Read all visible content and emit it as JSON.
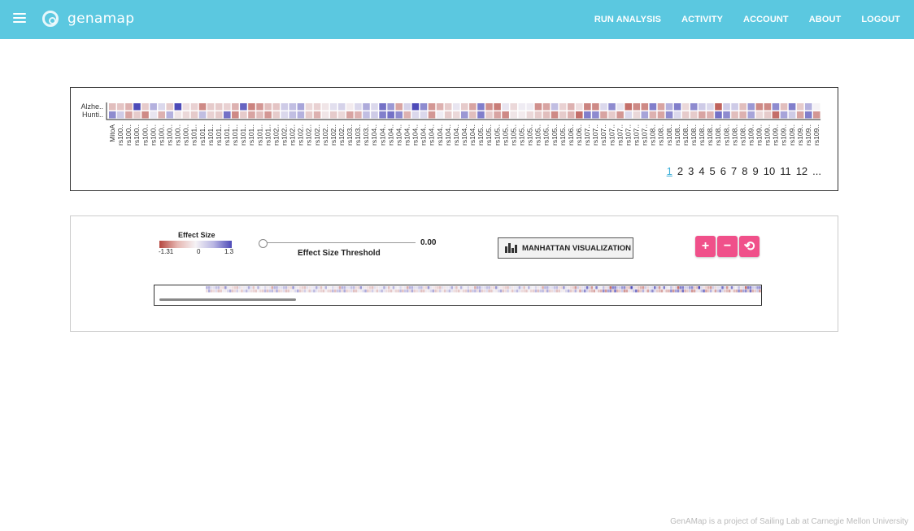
{
  "app": {
    "name": "genamap"
  },
  "nav": {
    "items": [
      "RUN ANALYSIS",
      "ACTIVITY",
      "ACCOUNT",
      "ABOUT",
      "LOGOUT"
    ]
  },
  "heatmap": {
    "rows": [
      "Alzhe..",
      "Hunti.."
    ],
    "columns": [
      "MitoA",
      "rs100..",
      "rs100..",
      "rs100..",
      "rs100..",
      "rs100..",
      "rs100..",
      "rs100..",
      "rs100..",
      "rs100..",
      "rs101..",
      "rs101..",
      "rs101..",
      "rs101..",
      "rs101..",
      "rs101..",
      "rs101..",
      "rs101..",
      "rs101..",
      "rs101..",
      "rs102..",
      "rs102..",
      "rs102..",
      "rs102..",
      "rs102..",
      "rs102..",
      "rs102..",
      "rs102..",
      "rs102..",
      "rs103..",
      "rs103..",
      "rs103..",
      "rs104..",
      "rs104..",
      "rs104..",
      "rs104..",
      "rs104..",
      "rs104..",
      "rs104..",
      "rs104..",
      "rs104..",
      "rs104..",
      "rs104..",
      "rs104..",
      "rs104..",
      "rs105..",
      "rs105..",
      "rs105..",
      "rs105..",
      "rs105..",
      "rs105..",
      "rs105..",
      "rs105..",
      "rs105..",
      "rs105..",
      "rs105..",
      "rs106..",
      "rs106..",
      "rs107..",
      "rs107..",
      "rs107..",
      "rs107..",
      "rs107..",
      "rs107..",
      "rs107..",
      "rs107..",
      "rs108..",
      "rs108..",
      "rs108..",
      "rs108..",
      "rs108..",
      "rs108..",
      "rs108..",
      "rs108..",
      "rs108..",
      "rs108..",
      "rs108..",
      "rs108..",
      "rs109..",
      "rs109..",
      "rs109..",
      "rs109..",
      "rs109..",
      "rs109..",
      "rs109..",
      "rs109..",
      "rs109.."
    ],
    "values": [
      [
        -0.4,
        -0.35,
        -0.5,
        1.3,
        -0.3,
        0.5,
        0.2,
        -0.3,
        1.3,
        -0.15,
        -0.25,
        -0.8,
        -0.3,
        -0.3,
        -0.25,
        -0.5,
        1.1,
        -0.85,
        -0.7,
        -0.4,
        -0.35,
        0.3,
        0.4,
        0.6,
        -0.2,
        -0.25,
        -0.1,
        0.15,
        0.25,
        -0.05,
        0.2,
        0.55,
        0.2,
        1.0,
        0.7,
        -0.6,
        0.25,
        1.3,
        0.8,
        -0.7,
        -0.5,
        -0.3,
        0.1,
        -0.3,
        -0.6,
        0.9,
        -0.75,
        -0.9,
        0.1,
        -0.2,
        0.05,
        0.05,
        -0.75,
        -0.6,
        0.4,
        -0.25,
        -0.5,
        -0.15,
        -0.85,
        -0.8,
        0.2,
        0.8,
        0.1,
        -1.0,
        -0.8,
        -0.8,
        0.9,
        -0.6,
        0.5,
        0.9,
        -0.2,
        0.8,
        0.3,
        0.2,
        -1.1,
        0.3,
        0.3,
        -0.4,
        0.7,
        -0.8,
        -0.8,
        0.8,
        -0.4,
        0.9,
        -0.3,
        0.5,
        0.0
      ],
      [
        0.8,
        0.3,
        -0.6,
        -0.3,
        -0.8,
        0.1,
        -0.5,
        0.5,
        -0.1,
        -0.2,
        -0.3,
        0.4,
        -0.25,
        -0.3,
        1.0,
        -0.8,
        -0.3,
        -0.6,
        -0.4,
        -0.7,
        -0.3,
        0.2,
        0.4,
        0.5,
        -0.3,
        -0.5,
        -0.1,
        -0.3,
        -0.2,
        -0.6,
        -0.5,
        0.4,
        0.3,
        0.9,
        1.0,
        0.8,
        -0.5,
        0.2,
        0.2,
        -0.7,
        0.05,
        -0.3,
        -0.2,
        0.7,
        -0.4,
        0.9,
        -0.3,
        -0.6,
        -0.8,
        -0.1,
        -0.05,
        -0.2,
        -0.3,
        -0.4,
        -0.8,
        -0.3,
        -0.5,
        -1.0,
        0.9,
        0.8,
        -0.6,
        -0.3,
        -0.7,
        0.2,
        -0.2,
        0.6,
        -0.5,
        -0.6,
        0.8,
        0.2,
        -0.3,
        -0.3,
        -0.6,
        -0.5,
        1.0,
        0.8,
        -0.4,
        -0.5,
        0.6,
        -0.2,
        -0.3,
        -1.0,
        0.6,
        0.3,
        -0.6,
        0.9,
        -0.7
      ]
    ],
    "pages": [
      "1",
      "2",
      "3",
      "4",
      "5",
      "6",
      "7",
      "8",
      "9",
      "10",
      "11",
      "12",
      "..."
    ],
    "active_page": "1"
  },
  "controls": {
    "legend_title": "Effect Size",
    "legend_min": "-1.31",
    "legend_mid": "0",
    "legend_max": "1.3",
    "threshold_value": "0.00",
    "threshold_label": "Effect Size Threshold",
    "manhattan_label": "MANHATTAN VISUALIZATION",
    "zoom_in": "+",
    "zoom_out": "−",
    "reset": "⟲"
  },
  "overview": {
    "scroll_fraction": 0.22
  },
  "colors": {
    "topbar": "#5bc8e0",
    "negative": "#b5473f",
    "positive": "#4d4ab8",
    "accent": "#f0508a",
    "active_page": "#3aaed8"
  },
  "footer": {
    "text": "GenAMap is a project of Sailing Lab at Carnegie Mellon University"
  }
}
